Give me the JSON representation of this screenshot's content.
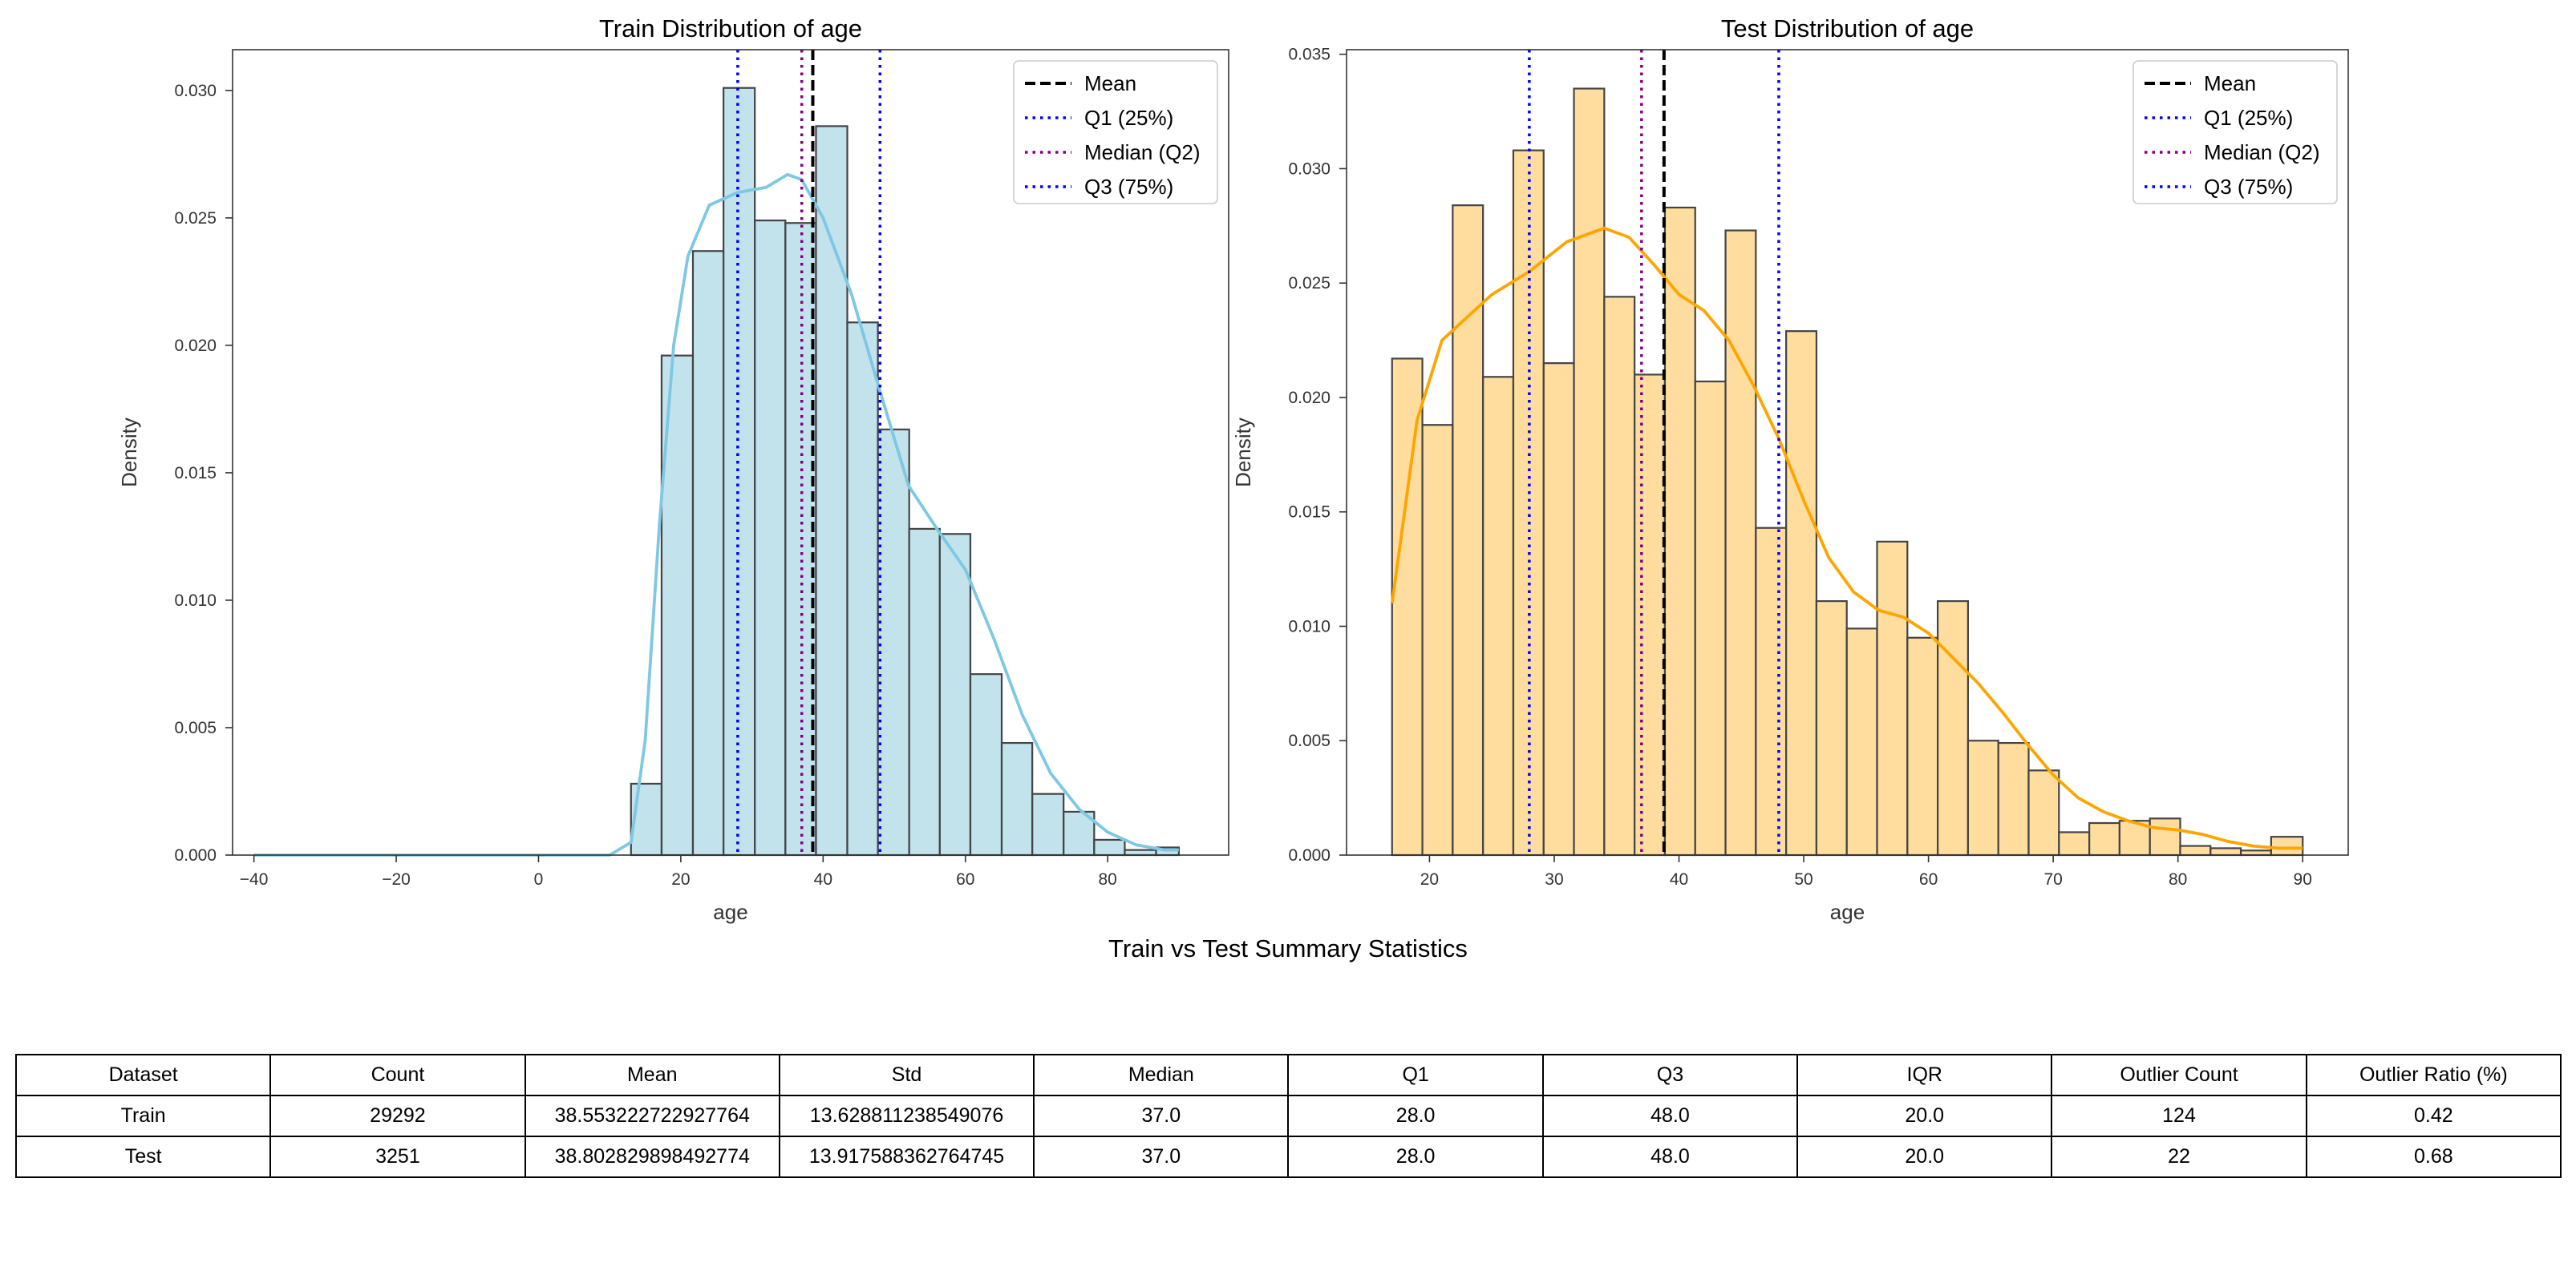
{
  "chart_data": [
    {
      "type": "histogram",
      "title": "Train Distribution of age",
      "xlabel": "age",
      "ylabel": "Density",
      "xlim": [
        -43,
        97
      ],
      "ylim": [
        0,
        0.0316
      ],
      "xticks": [
        -40,
        -20,
        0,
        20,
        40,
        60,
        80
      ],
      "yticks": [
        0.0,
        0.005,
        0.01,
        0.015,
        0.02,
        0.025,
        0.03
      ],
      "ytick_labels": [
        "0.000",
        "0.005",
        "0.010",
        "0.015",
        "0.020",
        "0.025",
        "0.030"
      ],
      "bar_color": "#add8e6",
      "kde_color": "#7ec8e3",
      "bins": [
        13,
        17.3,
        21.7,
        26.0,
        30.4,
        34.7,
        39.0,
        43.4,
        47.7,
        52.1,
        56.4,
        60.7,
        65.1,
        69.4,
        73.8,
        78.1,
        82.4,
        86.8,
        90.0
      ],
      "values": [
        0.0028,
        0.0196,
        0.0237,
        0.0301,
        0.0249,
        0.0248,
        0.0286,
        0.0209,
        0.0167,
        0.0128,
        0.0126,
        0.0071,
        0.0044,
        0.0024,
        0.0017,
        0.0006,
        0.0002,
        0.0003
      ],
      "kde": {
        "x": [
          -40,
          0,
          10,
          13,
          15,
          17,
          19,
          21,
          24,
          28,
          32,
          35,
          37,
          40,
          44,
          48,
          52,
          56,
          60,
          64,
          68,
          72,
          76,
          80,
          84,
          88,
          90
        ],
        "y": [
          0,
          0,
          0,
          0.0005,
          0.0045,
          0.013,
          0.02,
          0.0235,
          0.0255,
          0.026,
          0.0262,
          0.0267,
          0.0265,
          0.025,
          0.022,
          0.0182,
          0.0145,
          0.0128,
          0.0112,
          0.0085,
          0.0055,
          0.0032,
          0.0018,
          0.0009,
          0.0004,
          0.0002,
          0.0002
        ]
      },
      "lines": [
        {
          "name": "Mean",
          "x": 38.55,
          "color": "#000000",
          "style": "dashed"
        },
        {
          "name": "Q1 (25%)",
          "x": 28.0,
          "color": "#0000ff",
          "style": "dotted"
        },
        {
          "name": "Median (Q2)",
          "x": 37.0,
          "color": "#800080",
          "style": "dotted"
        },
        {
          "name": "Q3 (75%)",
          "x": 48.0,
          "color": "#0000ff",
          "style": "dotted"
        }
      ],
      "legend_position": "top-right"
    },
    {
      "type": "histogram",
      "title": "Test Distribution of age",
      "xlabel": "age",
      "ylabel": "Density",
      "xlim": [
        13.35,
        93.65
      ],
      "ylim": [
        0,
        0.0352
      ],
      "xticks": [
        20,
        30,
        40,
        50,
        60,
        70,
        80,
        90
      ],
      "yticks": [
        0.0,
        0.005,
        0.01,
        0.015,
        0.02,
        0.025,
        0.03,
        0.035
      ],
      "ytick_labels": [
        "0.000",
        "0.005",
        "0.010",
        "0.015",
        "0.020",
        "0.025",
        "0.030",
        "0.035"
      ],
      "bar_color": "#ffd27f",
      "kde_color": "#ffa500",
      "bins": [
        17,
        19.43,
        21.86,
        24.29,
        26.72,
        29.15,
        31.58,
        34.01,
        36.44,
        38.87,
        41.3,
        43.73,
        46.16,
        48.59,
        51.02,
        53.45,
        55.88,
        58.31,
        60.74,
        63.17,
        65.6,
        68.03,
        70.46,
        72.89,
        75.32,
        77.75,
        80.18,
        82.61,
        85.04,
        87.47,
        90.0
      ],
      "values": [
        0.0217,
        0.0188,
        0.0284,
        0.0209,
        0.0308,
        0.0215,
        0.0335,
        0.0244,
        0.021,
        0.0283,
        0.0207,
        0.0273,
        0.0143,
        0.0229,
        0.0111,
        0.0099,
        0.0137,
        0.0095,
        0.0111,
        0.005,
        0.0049,
        0.0037,
        0.001,
        0.0014,
        0.0015,
        0.0016,
        0.0004,
        0.0003,
        0.0002,
        0.0008
      ],
      "kde": {
        "x": [
          17,
          19,
          21,
          23,
          25,
          28,
          31,
          34,
          36,
          38,
          40,
          42,
          44,
          46,
          48,
          50,
          52,
          54,
          56,
          58,
          60,
          62,
          64,
          66,
          68,
          70,
          72,
          74,
          76,
          78,
          80,
          82,
          84,
          86,
          88,
          90
        ],
        "y": [
          0.011,
          0.019,
          0.0225,
          0.0235,
          0.0245,
          0.0255,
          0.0268,
          0.0274,
          0.027,
          0.0258,
          0.0245,
          0.0238,
          0.0225,
          0.0205,
          0.0182,
          0.0155,
          0.013,
          0.0115,
          0.0107,
          0.0104,
          0.0097,
          0.0086,
          0.0075,
          0.0062,
          0.0048,
          0.0035,
          0.0025,
          0.0019,
          0.0015,
          0.0012,
          0.0011,
          0.0009,
          0.0006,
          0.0004,
          0.0003,
          0.0003
        ]
      },
      "lines": [
        {
          "name": "Mean",
          "x": 38.8,
          "color": "#000000",
          "style": "dashed"
        },
        {
          "name": "Q1 (25%)",
          "x": 28.0,
          "color": "#0000ff",
          "style": "dotted"
        },
        {
          "name": "Median (Q2)",
          "x": 37.0,
          "color": "#800080",
          "style": "dotted"
        },
        {
          "name": "Q3 (75%)",
          "x": 48.0,
          "color": "#0000ff",
          "style": "dotted"
        }
      ],
      "legend_position": "top-right"
    }
  ],
  "summary": {
    "title": "Train vs Test Summary Statistics",
    "columns": [
      "Dataset",
      "Count",
      "Mean",
      "Std",
      "Median",
      "Q1",
      "Q3",
      "IQR",
      "Outlier Count",
      "Outlier Ratio (%)"
    ],
    "rows": [
      [
        "Train",
        "29292",
        "38.553222722927764",
        "13.628811238549076",
        "37.0",
        "28.0",
        "48.0",
        "20.0",
        "124",
        "0.42"
      ],
      [
        "Test",
        "3251",
        "38.802829898492774",
        "13.917588362764745",
        "37.0",
        "28.0",
        "48.0",
        "20.0",
        "22",
        "0.68"
      ]
    ]
  }
}
